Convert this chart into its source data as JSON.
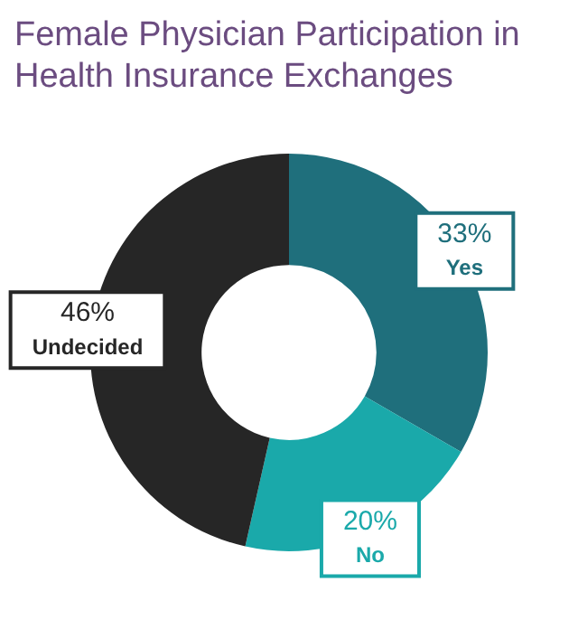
{
  "chart_data": {
    "type": "donut",
    "title": "Female Physician Participation in Health Insurance Exchanges",
    "categories": [
      "Yes",
      "No",
      "Undecided"
    ],
    "values": [
      33,
      20,
      46
    ],
    "colors": [
      "#1f6f7c",
      "#1aa9aa",
      "#262626"
    ],
    "value_labels": [
      "33%",
      "20%",
      "46%"
    ],
    "legend": false
  }
}
